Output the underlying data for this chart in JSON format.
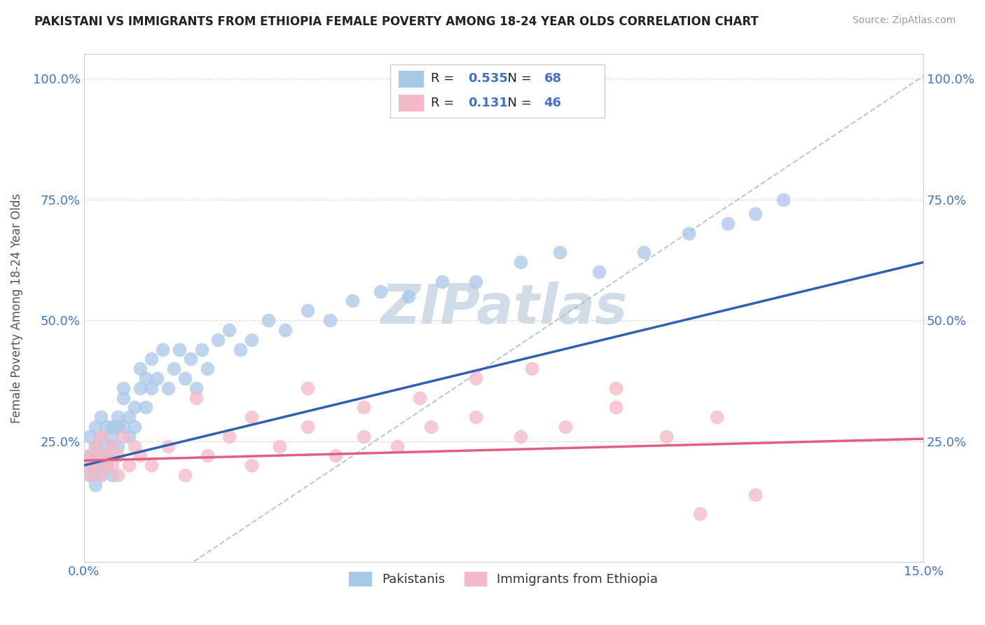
{
  "title": "PAKISTANI VS IMMIGRANTS FROM ETHIOPIA FEMALE POVERTY AMONG 18-24 YEAR OLDS CORRELATION CHART",
  "source": "Source: ZipAtlas.com",
  "ylabel": "Female Poverty Among 18-24 Year Olds",
  "ytick_vals": [
    0.25,
    0.5,
    0.75,
    1.0
  ],
  "ytick_labels": [
    "25.0%",
    "50.0%",
    "75.0%",
    "100.0%"
  ],
  "xlim": [
    0.0,
    0.15
  ],
  "ylim": [
    0.0,
    1.05
  ],
  "legend1_label": "Pakistanis",
  "legend2_label": "Immigrants from Ethiopia",
  "R1": 0.535,
  "N1": 68,
  "R2": 0.131,
  "N2": 46,
  "blue_color": "#a8c8e8",
  "pink_color": "#f4b8c8",
  "blue_line_color": "#3060b0",
  "pink_line_color": "#e06080",
  "gray_line_color": "#b0b8c8",
  "watermark_color": "#d0dce8",
  "blue_scatter_x": [
    0.0005,
    0.001,
    0.001,
    0.001,
    0.002,
    0.002,
    0.002,
    0.002,
    0.002,
    0.003,
    0.003,
    0.003,
    0.003,
    0.004,
    0.004,
    0.004,
    0.004,
    0.005,
    0.005,
    0.005,
    0.005,
    0.006,
    0.006,
    0.006,
    0.007,
    0.007,
    0.007,
    0.008,
    0.008,
    0.009,
    0.009,
    0.01,
    0.01,
    0.011,
    0.011,
    0.012,
    0.012,
    0.013,
    0.014,
    0.015,
    0.016,
    0.017,
    0.018,
    0.019,
    0.02,
    0.021,
    0.022,
    0.024,
    0.026,
    0.028,
    0.03,
    0.033,
    0.036,
    0.04,
    0.044,
    0.048,
    0.053,
    0.058,
    0.064,
    0.07,
    0.078,
    0.085,
    0.092,
    0.1,
    0.108,
    0.115,
    0.12,
    0.125
  ],
  "blue_scatter_y": [
    0.2,
    0.22,
    0.18,
    0.26,
    0.19,
    0.24,
    0.16,
    0.28,
    0.22,
    0.2,
    0.26,
    0.3,
    0.18,
    0.24,
    0.2,
    0.28,
    0.22,
    0.26,
    0.22,
    0.28,
    0.18,
    0.3,
    0.24,
    0.28,
    0.34,
    0.28,
    0.36,
    0.26,
    0.3,
    0.32,
    0.28,
    0.36,
    0.4,
    0.32,
    0.38,
    0.36,
    0.42,
    0.38,
    0.44,
    0.36,
    0.4,
    0.44,
    0.38,
    0.42,
    0.36,
    0.44,
    0.4,
    0.46,
    0.48,
    0.44,
    0.46,
    0.5,
    0.48,
    0.52,
    0.5,
    0.54,
    0.56,
    0.55,
    0.58,
    0.58,
    0.62,
    0.64,
    0.6,
    0.64,
    0.68,
    0.7,
    0.72,
    0.75
  ],
  "pink_scatter_x": [
    0.0005,
    0.001,
    0.001,
    0.002,
    0.002,
    0.003,
    0.003,
    0.003,
    0.004,
    0.004,
    0.005,
    0.005,
    0.006,
    0.006,
    0.007,
    0.008,
    0.009,
    0.01,
    0.012,
    0.015,
    0.018,
    0.022,
    0.026,
    0.03,
    0.035,
    0.04,
    0.045,
    0.05,
    0.056,
    0.062,
    0.07,
    0.078,
    0.086,
    0.095,
    0.104,
    0.113,
    0.02,
    0.03,
    0.04,
    0.05,
    0.06,
    0.07,
    0.08,
    0.095,
    0.11,
    0.12
  ],
  "pink_scatter_y": [
    0.2,
    0.22,
    0.18,
    0.24,
    0.2,
    0.22,
    0.18,
    0.26,
    0.22,
    0.2,
    0.24,
    0.2,
    0.22,
    0.18,
    0.26,
    0.2,
    0.24,
    0.22,
    0.2,
    0.24,
    0.18,
    0.22,
    0.26,
    0.2,
    0.24,
    0.28,
    0.22,
    0.26,
    0.24,
    0.28,
    0.3,
    0.26,
    0.28,
    0.32,
    0.26,
    0.3,
    0.34,
    0.3,
    0.36,
    0.32,
    0.34,
    0.38,
    0.4,
    0.36,
    0.1,
    0.14
  ]
}
